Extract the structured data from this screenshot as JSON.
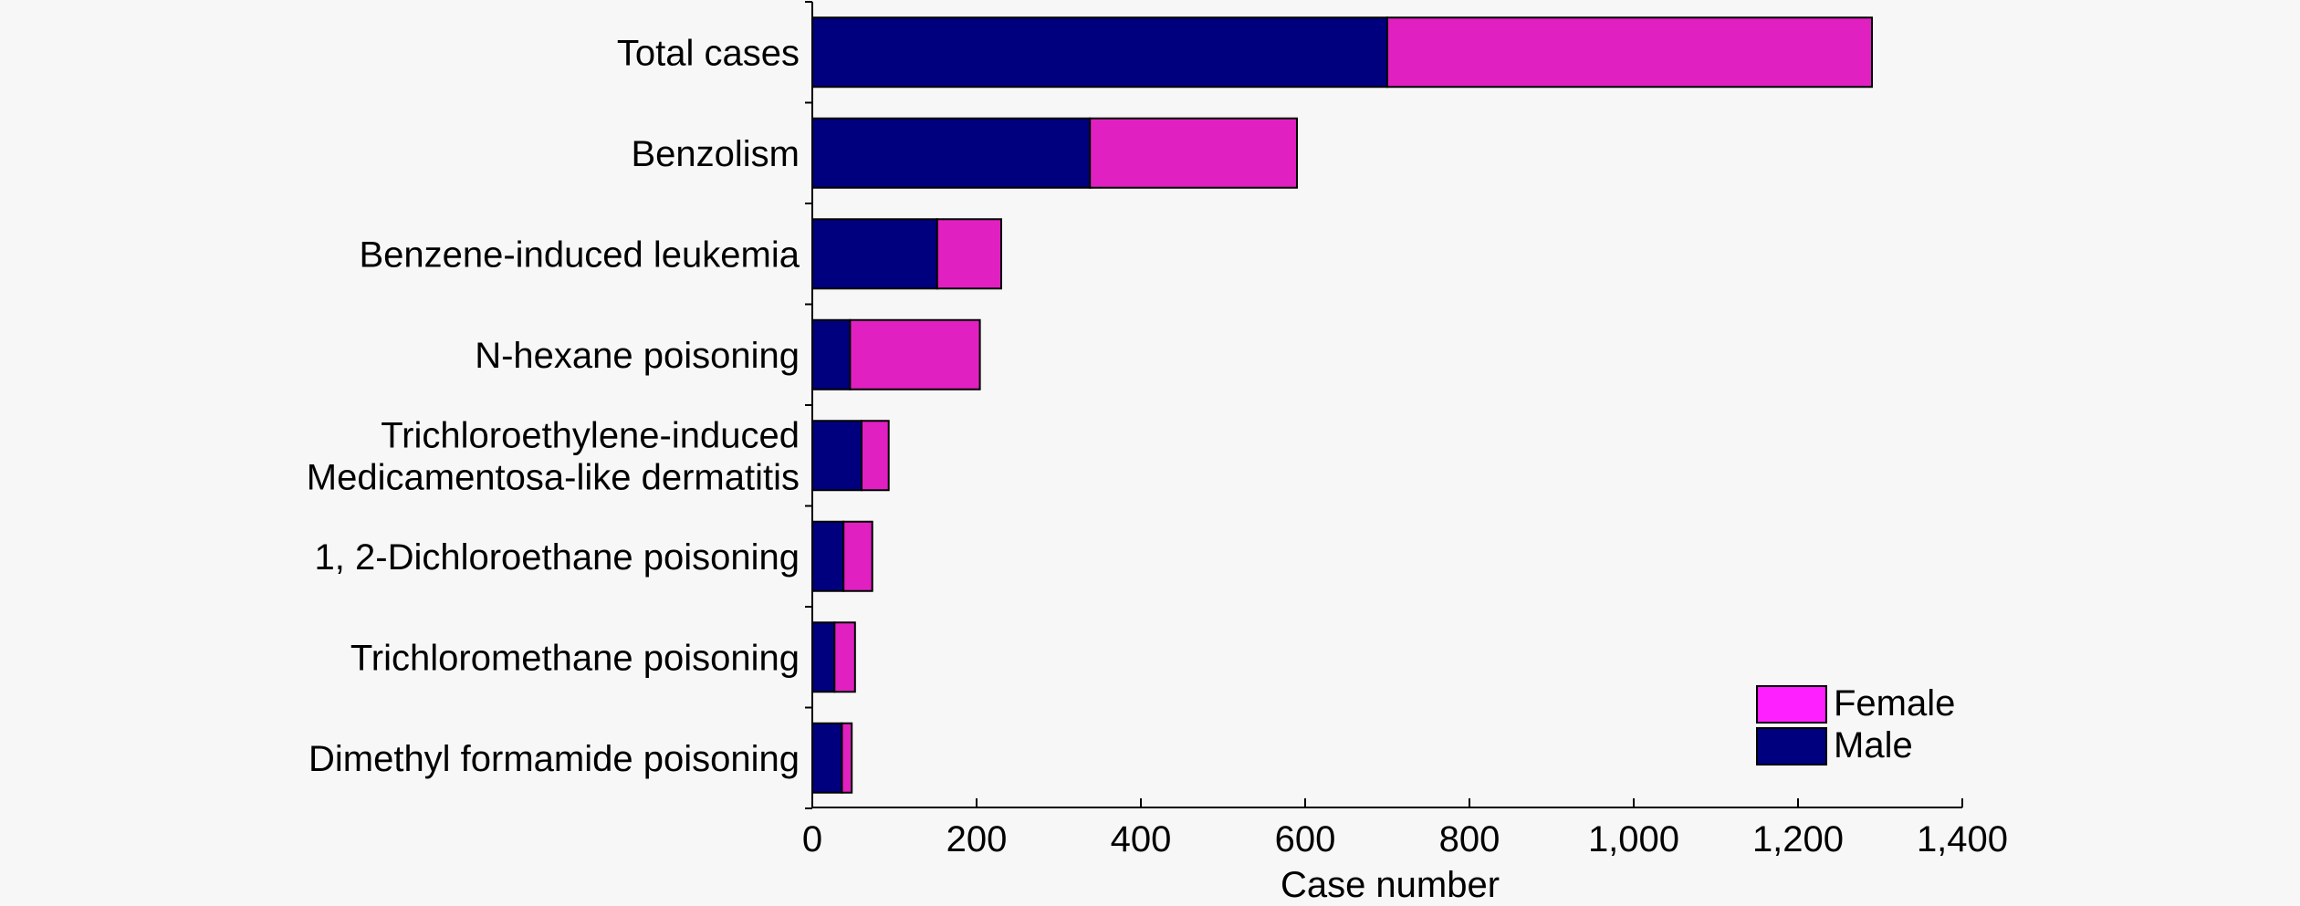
{
  "chart_data": {
    "type": "bar",
    "orientation": "horizontal",
    "stacked": true,
    "categories": [
      [
        "Total cases"
      ],
      [
        "Benzolism"
      ],
      [
        "Benzene-induced leukemia"
      ],
      [
        "N-hexane poisoning"
      ],
      [
        "Trichloroethylene-induced",
        "Medicamentosa-like dermatitis"
      ],
      [
        "1, 2-Dichloroethane poisoning"
      ],
      [
        "Trichloromethane poisoning"
      ],
      [
        "Dimethyl formamide poisoning"
      ]
    ],
    "series": [
      {
        "name": "Male",
        "color": "#00007f",
        "values": [
          700,
          338,
          152,
          46,
          60,
          38,
          27,
          36
        ]
      },
      {
        "name": "Female",
        "color": "#e020c0",
        "values": [
          590,
          252,
          78,
          158,
          33,
          35,
          25,
          12
        ]
      }
    ],
    "xlabel": "Case number",
    "ylabel": "",
    "xlim": [
      0,
      1400
    ],
    "xticks": [
      0,
      200,
      400,
      600,
      800,
      1000,
      1200,
      1400
    ],
    "xtick_labels": [
      "0",
      "200",
      "400",
      "600",
      "800",
      "1,000",
      "1,200",
      "1,400"
    ],
    "grid": false,
    "legend": {
      "position": "bottom-right",
      "entries": [
        {
          "label": "Female",
          "color": "#ff20ff"
        },
        {
          "label": "Male",
          "color": "#00007f"
        }
      ]
    }
  }
}
